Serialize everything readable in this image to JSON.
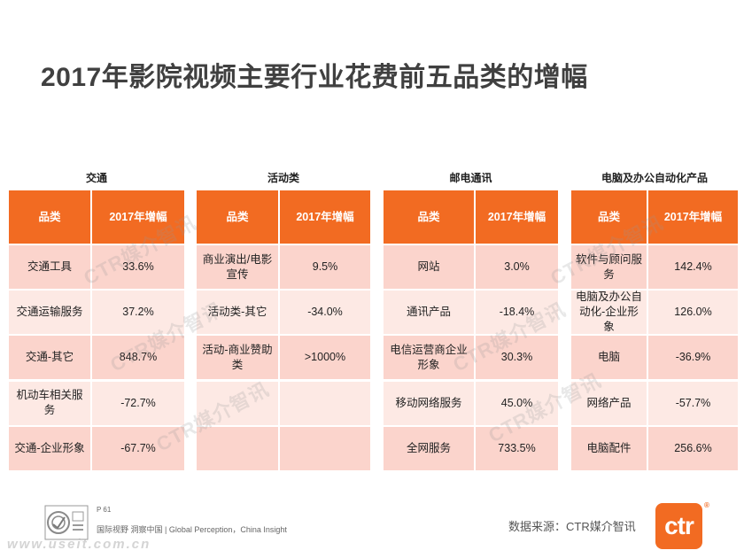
{
  "title": "2017年影院视频主要行业花费前五品类的增幅",
  "watermark": "CTR媒介智讯",
  "colors": {
    "header": "#f26b22",
    "row_dark": "#fbd4cc",
    "row_light": "#fde9e4",
    "brand": "#f26b22"
  },
  "tables": [
    {
      "title": "交通",
      "header": {
        "category": "品类",
        "growth": "2017年增幅"
      },
      "rows": [
        {
          "category": "交通工具",
          "growth": "33.6%"
        },
        {
          "category": "交通运输服务",
          "growth": "37.2%"
        },
        {
          "category": "交通-其它",
          "growth": "848.7%"
        },
        {
          "category": "机动车相关服务",
          "growth": "-72.7%"
        },
        {
          "category": "交通-企业形象",
          "growth": "-67.7%"
        }
      ]
    },
    {
      "title": "活动类",
      "header": {
        "category": "品类",
        "growth": "2017年增幅"
      },
      "rows": [
        {
          "category": "商业演出/电影宣传",
          "growth": "9.5%"
        },
        {
          "category": "活动类-其它",
          "growth": "-34.0%"
        },
        {
          "category": "活动-商业赞助类",
          "growth": ">1000%"
        },
        {
          "category": "",
          "growth": ""
        },
        {
          "category": "",
          "growth": ""
        }
      ]
    },
    {
      "title": "邮电通讯",
      "header": {
        "category": "品类",
        "growth": "2017年增幅"
      },
      "rows": [
        {
          "category": "网站",
          "growth": "3.0%"
        },
        {
          "category": "通讯产品",
          "growth": "-18.4%"
        },
        {
          "category": "电信运营商企业形象",
          "growth": "30.3%"
        },
        {
          "category": "移动网络服务",
          "growth": "45.0%"
        },
        {
          "category": "全网服务",
          "growth": "733.5%"
        }
      ]
    },
    {
      "title": "电脑及办公自动化产品",
      "header": {
        "category": "品类",
        "growth": "2017年增幅"
      },
      "rows": [
        {
          "category": "软件与顾问服务",
          "growth": "142.4%"
        },
        {
          "category": "电脑及办公自动化-企业形象",
          "growth": "126.0%"
        },
        {
          "category": "电脑",
          "growth": "-36.9%"
        },
        {
          "category": "网络产品",
          "growth": "-57.7%"
        },
        {
          "category": "电脑配件",
          "growth": "256.6%"
        }
      ]
    }
  ],
  "footer": {
    "page": "P 61",
    "slogan": "国际视野  洞察中国 | Global Perception，China Insight",
    "site_watermark": "www.useit.com.cn",
    "source": "数据来源：CTR媒介智讯",
    "logo_text": "ctr",
    "registered": "®",
    "cert_icon": "certification-seal-icon"
  }
}
